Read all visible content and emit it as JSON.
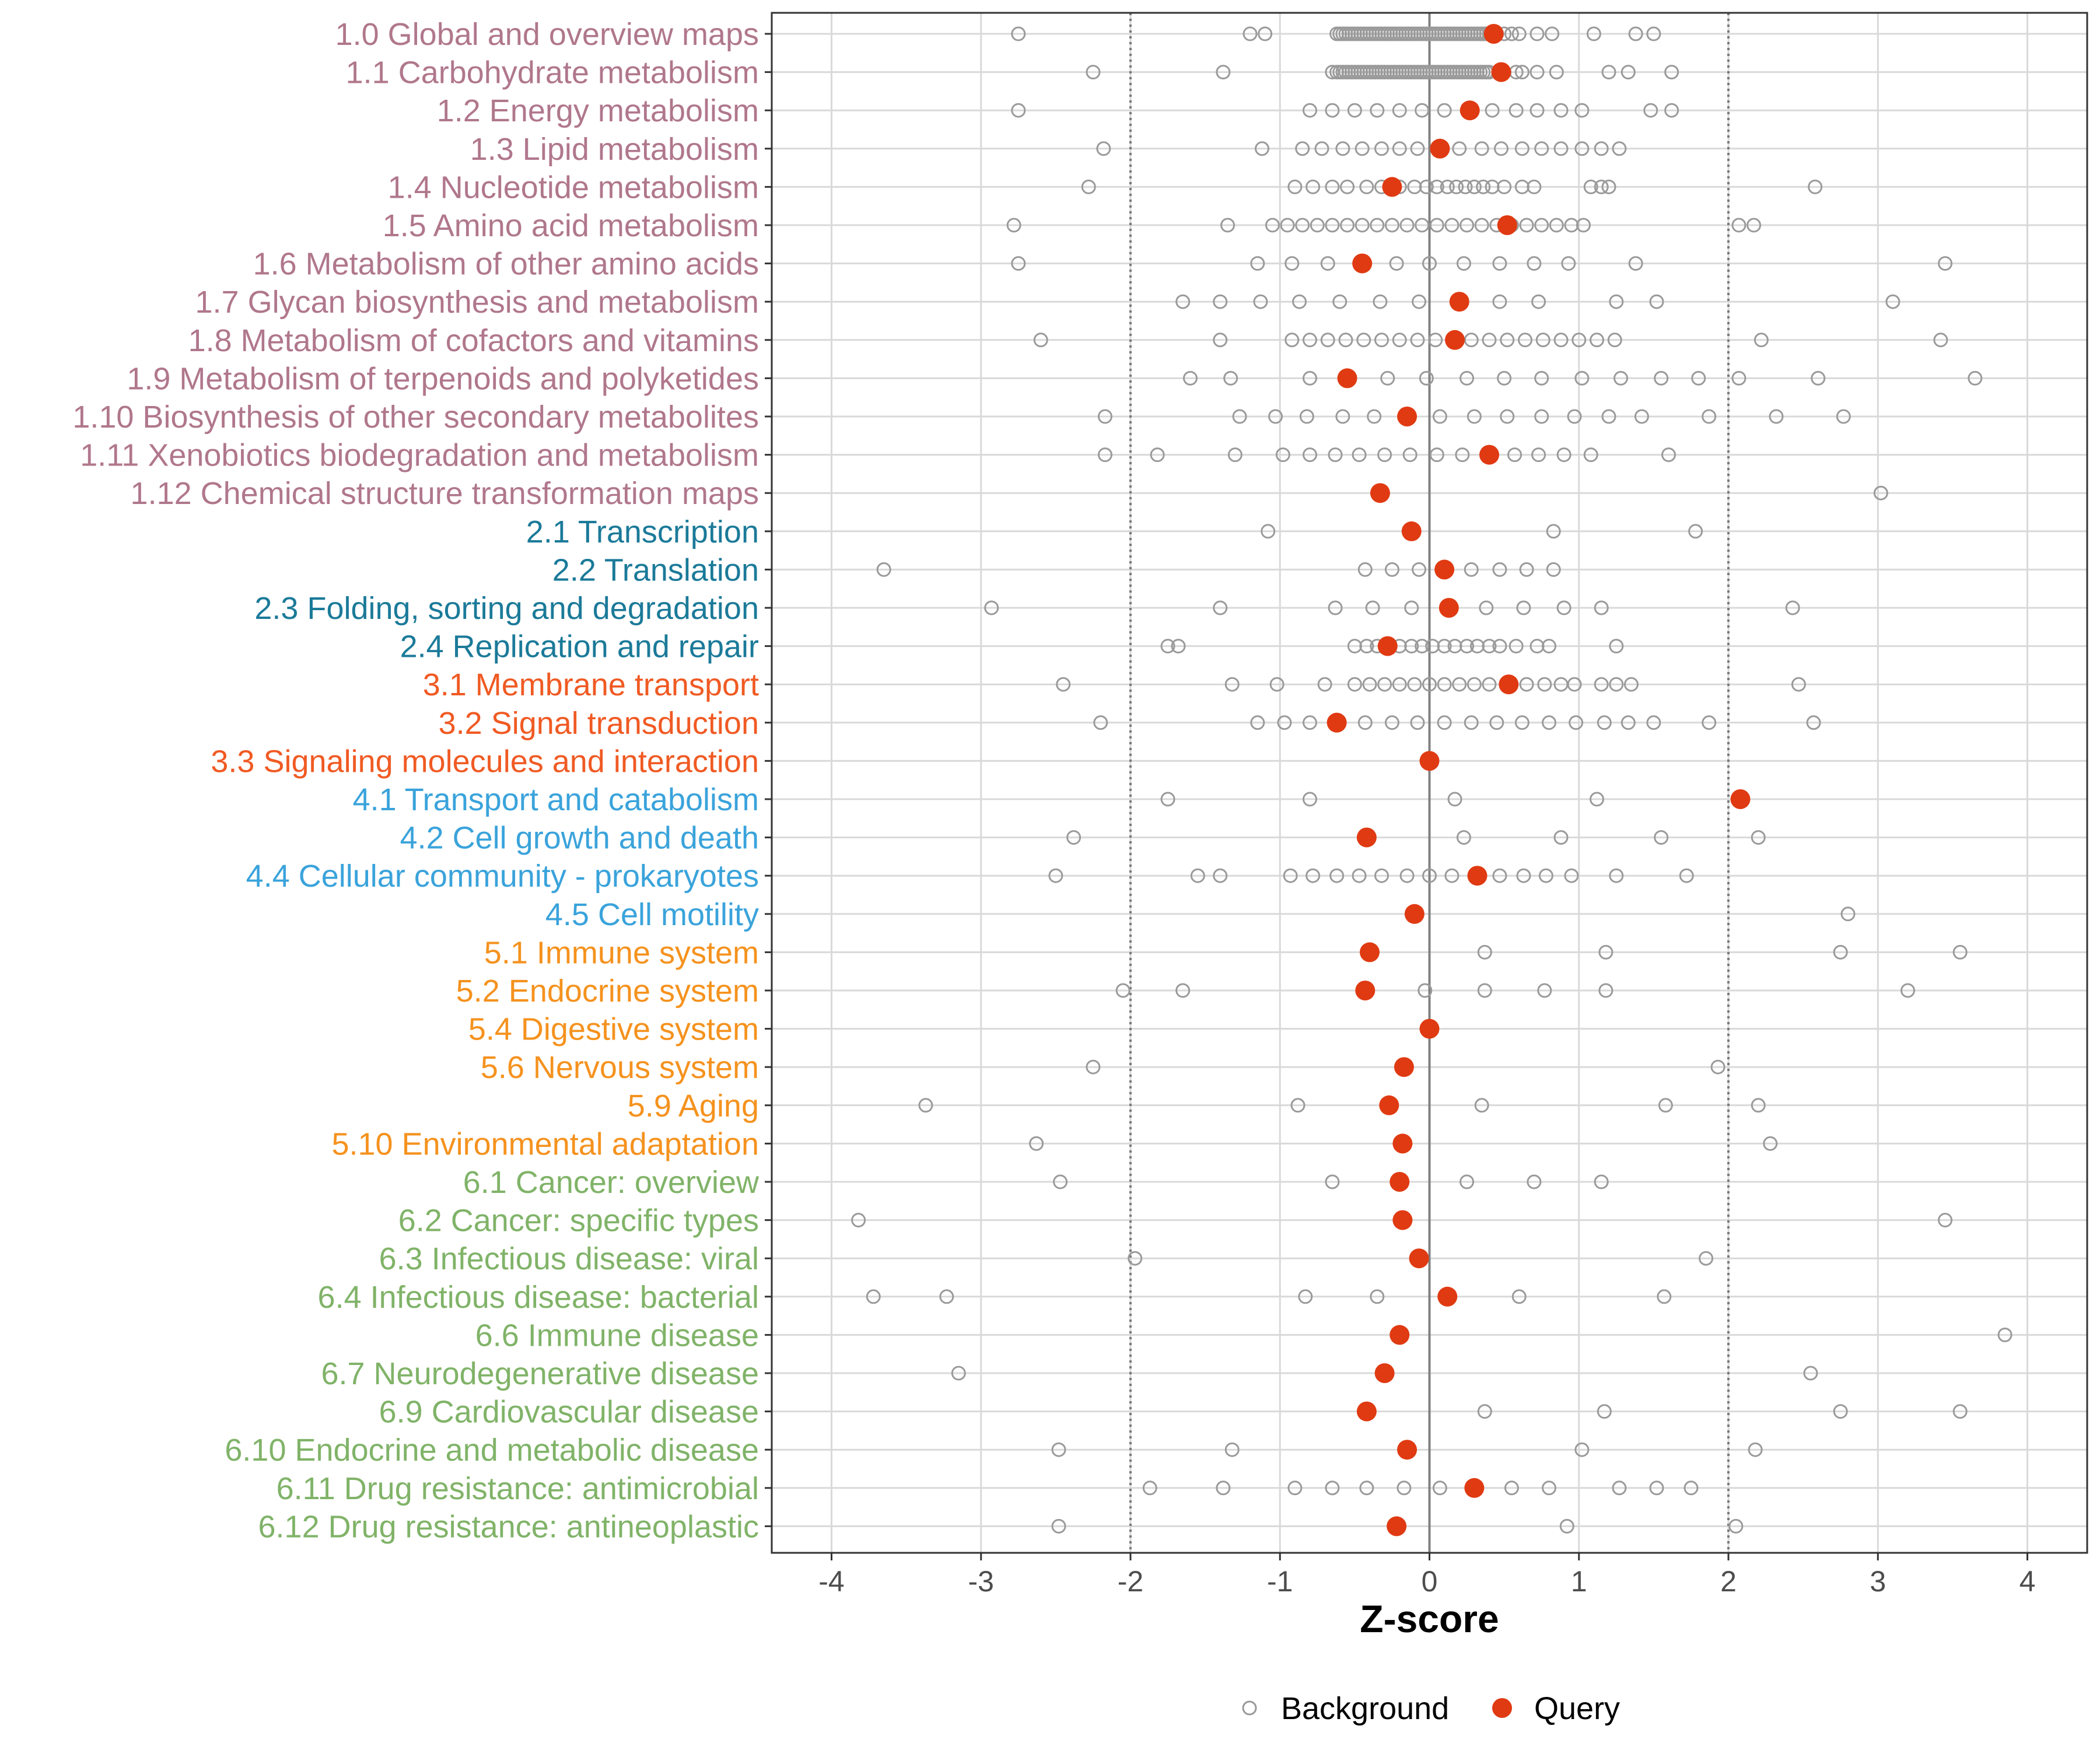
{
  "chart_data": {
    "type": "scatter",
    "xlabel": "Z-score",
    "xlim": [
      -4.4,
      4.4
    ],
    "x_ticks": [
      "-4",
      "-3",
      "-2",
      "-1",
      "0",
      "1",
      "2",
      "3",
      "4"
    ],
    "reference_lines": {
      "solid": [
        0
      ],
      "dotted": [
        -2,
        2
      ]
    },
    "grid": true,
    "legend": {
      "position": "bottom",
      "entries": [
        {
          "name": "Background",
          "marker": "open-circle",
          "color": "#999999"
        },
        {
          "name": "Query",
          "marker": "filled-circle",
          "color": "#e03a12"
        }
      ]
    },
    "group_colors": {
      "1": "#b0778c",
      "2": "#1b7a99",
      "3": "#f05a23",
      "4": "#3aa3db",
      "5": "#f5921e",
      "6": "#80b368"
    },
    "categories": [
      {
        "label": "1.0 Global and overview maps",
        "group": "1",
        "query": 0.43,
        "background": [
          -2.75,
          -1.2,
          -1.1,
          -0.62,
          -0.6,
          -0.58,
          -0.56,
          -0.54,
          -0.52,
          -0.5,
          -0.48,
          -0.46,
          -0.44,
          -0.42,
          -0.4,
          -0.38,
          -0.36,
          -0.34,
          -0.32,
          -0.3,
          -0.28,
          -0.26,
          -0.24,
          -0.22,
          -0.2,
          -0.18,
          -0.16,
          -0.14,
          -0.12,
          -0.1,
          -0.08,
          -0.06,
          -0.04,
          -0.02,
          0,
          0.02,
          0.04,
          0.06,
          0.08,
          0.1,
          0.12,
          0.14,
          0.16,
          0.18,
          0.2,
          0.22,
          0.24,
          0.26,
          0.28,
          0.3,
          0.32,
          0.34,
          0.36,
          0.38,
          0.4,
          0.45,
          0.5,
          0.55,
          0.6,
          0.72,
          0.82,
          1.1,
          1.38,
          1.5
        ]
      },
      {
        "label": "1.1 Carbohydrate metabolism",
        "group": "1",
        "query": 0.48,
        "background": [
          -2.25,
          -1.38,
          -0.65,
          -0.62,
          -0.6,
          -0.58,
          -0.56,
          -0.54,
          -0.52,
          -0.5,
          -0.48,
          -0.46,
          -0.44,
          -0.42,
          -0.4,
          -0.38,
          -0.36,
          -0.34,
          -0.32,
          -0.3,
          -0.28,
          -0.26,
          -0.24,
          -0.22,
          -0.2,
          -0.18,
          -0.16,
          -0.14,
          -0.12,
          -0.1,
          -0.08,
          -0.06,
          -0.04,
          -0.02,
          0,
          0.02,
          0.04,
          0.06,
          0.08,
          0.1,
          0.12,
          0.14,
          0.16,
          0.18,
          0.2,
          0.22,
          0.24,
          0.26,
          0.28,
          0.3,
          0.32,
          0.34,
          0.36,
          0.38,
          0.4,
          0.5,
          0.58,
          0.62,
          0.72,
          0.85,
          1.2,
          1.33,
          1.62
        ]
      },
      {
        "label": "1.2 Energy metabolism",
        "group": "1",
        "query": 0.27,
        "background": [
          -2.75,
          -0.8,
          -0.65,
          -0.5,
          -0.35,
          -0.2,
          -0.05,
          0.1,
          0.27,
          0.42,
          0.58,
          0.72,
          0.88,
          1.02,
          1.48,
          1.62
        ]
      },
      {
        "label": "1.3 Lipid metabolism",
        "group": "1",
        "query": 0.07,
        "background": [
          -2.18,
          -1.12,
          -0.85,
          -0.72,
          -0.58,
          -0.45,
          -0.32,
          -0.2,
          -0.08,
          0.08,
          0.2,
          0.35,
          0.48,
          0.62,
          0.75,
          0.88,
          1.02,
          1.15,
          1.27
        ]
      },
      {
        "label": "1.4 Nucleotide metabolism",
        "group": "1",
        "query": -0.25,
        "background": [
          -2.28,
          -0.9,
          -0.78,
          -0.65,
          -0.55,
          -0.42,
          -0.32,
          -0.2,
          -0.1,
          -0.02,
          0.05,
          0.12,
          0.18,
          0.24,
          0.3,
          0.36,
          0.42,
          0.5,
          0.62,
          0.7,
          1.08,
          1.15,
          1.2,
          2.58
        ]
      },
      {
        "label": "1.5 Amino acid metabolism",
        "group": "1",
        "query": 0.52,
        "background": [
          -2.78,
          -1.35,
          -1.05,
          -0.95,
          -0.85,
          -0.75,
          -0.65,
          -0.55,
          -0.45,
          -0.35,
          -0.25,
          -0.15,
          -0.05,
          0.05,
          0.15,
          0.25,
          0.35,
          0.45,
          0.55,
          0.65,
          0.75,
          0.85,
          0.95,
          1.03,
          2.07,
          2.17
        ]
      },
      {
        "label": "1.6 Metabolism of other amino acids",
        "group": "1",
        "query": -0.45,
        "background": [
          -2.75,
          -1.15,
          -0.92,
          -0.68,
          -0.45,
          -0.22,
          0,
          0.23,
          0.47,
          0.7,
          0.93,
          1.38,
          3.45
        ]
      },
      {
        "label": "1.7 Glycan biosynthesis and metabolism",
        "group": "1",
        "query": 0.2,
        "background": [
          -1.65,
          -1.4,
          -1.13,
          -0.87,
          -0.6,
          -0.33,
          -0.07,
          0.2,
          0.47,
          0.73,
          1.25,
          1.52,
          3.1
        ]
      },
      {
        "label": "1.8 Metabolism of cofactors and vitamins",
        "group": "1",
        "query": 0.17,
        "background": [
          -2.6,
          -1.4,
          -0.92,
          -0.8,
          -0.68,
          -0.56,
          -0.44,
          -0.32,
          -0.2,
          -0.08,
          0.04,
          0.16,
          0.28,
          0.4,
          0.52,
          0.64,
          0.76,
          0.88,
          1.0,
          1.12,
          1.24,
          2.22,
          3.42
        ]
      },
      {
        "label": "1.9 Metabolism of terpenoids and polyketides",
        "group": "1",
        "query": -0.55,
        "background": [
          -1.6,
          -1.33,
          -0.8,
          -0.55,
          -0.28,
          -0.02,
          0.25,
          0.5,
          0.75,
          1.02,
          1.28,
          1.55,
          1.8,
          2.07,
          2.6,
          3.65
        ]
      },
      {
        "label": "1.10 Biosynthesis of other secondary metabolites",
        "group": "1",
        "query": -0.15,
        "background": [
          -2.17,
          -1.27,
          -1.03,
          -0.82,
          -0.58,
          -0.37,
          -0.15,
          0.07,
          0.3,
          0.52,
          0.75,
          0.97,
          1.2,
          1.42,
          1.87,
          2.32,
          2.77
        ]
      },
      {
        "label": "1.11 Xenobiotics biodegradation and metabolism",
        "group": "1",
        "query": 0.4,
        "background": [
          -2.17,
          -1.82,
          -1.3,
          -0.98,
          -0.8,
          -0.63,
          -0.47,
          -0.3,
          -0.13,
          0.05,
          0.22,
          0.4,
          0.57,
          0.73,
          0.9,
          1.08,
          1.6
        ]
      },
      {
        "label": "1.12 Chemical structure transformation maps",
        "group": "1",
        "query": -0.33,
        "background": [
          3.02
        ]
      },
      {
        "label": "2.1 Transcription",
        "group": "2",
        "query": -0.12,
        "background": [
          -1.08,
          0.83,
          1.78
        ]
      },
      {
        "label": "2.2 Translation",
        "group": "2",
        "query": 0.1,
        "background": [
          -3.65,
          -0.43,
          -0.25,
          -0.07,
          0.1,
          0.28,
          0.47,
          0.65,
          0.83
        ]
      },
      {
        "label": "2.3 Folding, sorting and degradation",
        "group": "2",
        "query": 0.13,
        "background": [
          -2.93,
          -1.4,
          -0.63,
          -0.38,
          -0.12,
          0.13,
          0.38,
          0.63,
          0.9,
          1.15,
          2.43
        ]
      },
      {
        "label": "2.4 Replication and repair",
        "group": "2",
        "query": -0.28,
        "background": [
          -1.75,
          -1.68,
          -0.5,
          -0.42,
          -0.35,
          -0.28,
          -0.2,
          -0.12,
          -0.05,
          0.02,
          0.1,
          0.17,
          0.25,
          0.32,
          0.4,
          0.47,
          0.58,
          0.72,
          0.8,
          1.25
        ]
      },
      {
        "label": "3.1 Membrane transport",
        "group": "3",
        "query": 0.53,
        "background": [
          -2.45,
          -1.32,
          -1.02,
          -0.7,
          -0.5,
          -0.4,
          -0.3,
          -0.2,
          -0.1,
          0,
          0.1,
          0.2,
          0.3,
          0.4,
          0.53,
          0.65,
          0.77,
          0.88,
          0.97,
          1.15,
          1.25,
          1.35,
          2.47
        ]
      },
      {
        "label": "3.2 Signal transduction",
        "group": "3",
        "query": -0.62,
        "background": [
          -2.2,
          -1.15,
          -0.97,
          -0.8,
          -0.62,
          -0.43,
          -0.25,
          -0.08,
          0.1,
          0.28,
          0.45,
          0.62,
          0.8,
          0.98,
          1.17,
          1.33,
          1.5,
          1.87,
          2.57
        ]
      },
      {
        "label": "3.3 Signaling molecules and interaction",
        "group": "3",
        "query": 0.0,
        "background": []
      },
      {
        "label": "4.1 Transport and catabolism",
        "group": "4",
        "query": 2.08,
        "background": [
          -1.75,
          -0.8,
          0.17,
          1.12
        ]
      },
      {
        "label": "4.2 Cell growth and death",
        "group": "4",
        "query": -0.42,
        "background": [
          -2.38,
          0.23,
          0.88,
          1.55,
          2.2
        ]
      },
      {
        "label": "4.4 Cellular community - prokaryotes",
        "group": "4",
        "query": 0.32,
        "background": [
          -2.5,
          -1.55,
          -1.4,
          -0.93,
          -0.78,
          -0.62,
          -0.47,
          -0.32,
          -0.15,
          0,
          0.15,
          0.32,
          0.47,
          0.63,
          0.78,
          0.95,
          1.25,
          1.72
        ]
      },
      {
        "label": "4.5 Cell motility",
        "group": "4",
        "query": -0.1,
        "background": [
          2.8
        ]
      },
      {
        "label": "5.1 Immune system",
        "group": "5",
        "query": -0.4,
        "background": [
          0.37,
          1.18,
          2.75,
          3.55
        ]
      },
      {
        "label": "5.2 Endocrine system",
        "group": "5",
        "query": -0.43,
        "background": [
          -2.05,
          -1.65,
          -0.03,
          0.37,
          0.77,
          1.18,
          3.2
        ]
      },
      {
        "label": "5.4 Digestive system",
        "group": "5",
        "query": 0.0,
        "background": []
      },
      {
        "label": "5.6 Nervous system",
        "group": "5",
        "query": -0.17,
        "background": [
          -2.25,
          1.93
        ]
      },
      {
        "label": "5.9 Aging",
        "group": "5",
        "query": -0.27,
        "background": [
          -3.37,
          -0.88,
          0.35,
          1.58,
          2.2
        ]
      },
      {
        "label": "5.10 Environmental adaptation",
        "group": "5",
        "query": -0.18,
        "background": [
          -2.63,
          2.28
        ]
      },
      {
        "label": "6.1 Cancer: overview",
        "group": "6",
        "query": -0.2,
        "background": [
          -2.47,
          -0.65,
          0.25,
          0.7,
          1.15
        ]
      },
      {
        "label": "6.2 Cancer: specific types",
        "group": "6",
        "query": -0.18,
        "background": [
          -3.82,
          3.45
        ]
      },
      {
        "label": "6.3 Infectious disease: viral",
        "group": "6",
        "query": -0.07,
        "background": [
          -1.97,
          1.85
        ]
      },
      {
        "label": "6.4 Infectious disease: bacterial",
        "group": "6",
        "query": 0.12,
        "background": [
          -3.72,
          -3.23,
          -0.83,
          -0.35,
          0.6,
          1.57
        ]
      },
      {
        "label": "6.6 Immune disease",
        "group": "6",
        "query": -0.2,
        "background": [
          3.85
        ]
      },
      {
        "label": "6.7 Neurodegenerative disease",
        "group": "6",
        "query": -0.3,
        "background": [
          -3.15,
          2.55
        ]
      },
      {
        "label": "6.9 Cardiovascular disease",
        "group": "6",
        "query": -0.42,
        "background": [
          0.37,
          1.17,
          2.75,
          3.55
        ]
      },
      {
        "label": "6.10 Endocrine and metabolic disease",
        "group": "6",
        "query": -0.15,
        "background": [
          -2.48,
          -1.32,
          1.02,
          2.18
        ]
      },
      {
        "label": "6.11 Drug resistance: antimicrobial",
        "group": "6",
        "query": 0.3,
        "background": [
          -1.87,
          -1.38,
          -0.9,
          -0.65,
          -0.42,
          -0.17,
          0.07,
          0.55,
          0.8,
          1.27,
          1.52,
          1.75
        ]
      },
      {
        "label": "6.12 Drug resistance: antineoplastic",
        "group": "6",
        "query": -0.22,
        "background": [
          -2.48,
          0.92,
          2.05
        ]
      }
    ]
  }
}
